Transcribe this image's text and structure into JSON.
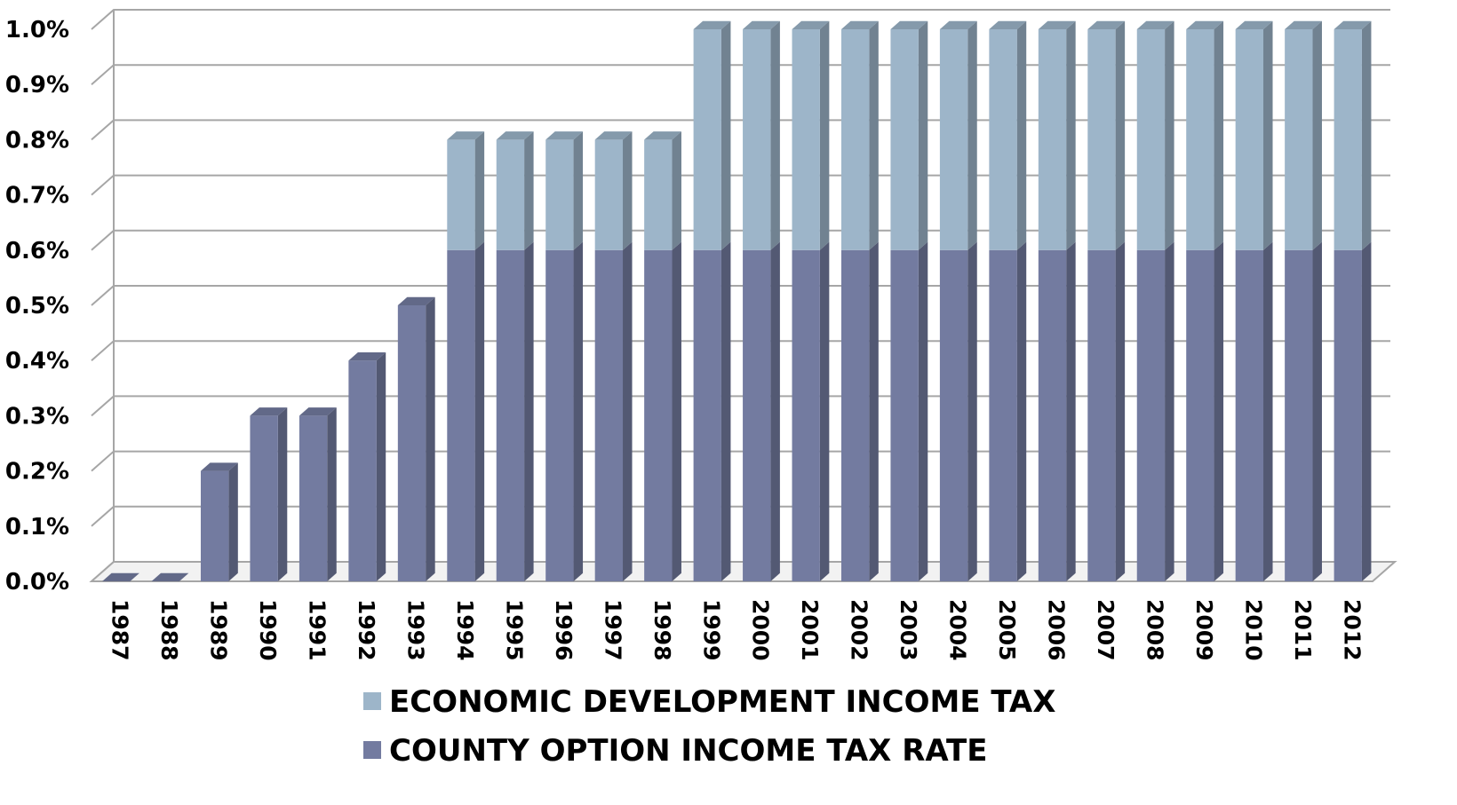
{
  "chart_data": {
    "type": "bar",
    "stacked": true,
    "three_d": true,
    "categories": [
      "1987",
      "1988",
      "1989",
      "1990",
      "1991",
      "1992",
      "1993",
      "1994",
      "1995",
      "1996",
      "1997",
      "1998",
      "1999",
      "2000",
      "2001",
      "2002",
      "2003",
      "2004",
      "2005",
      "2006",
      "2007",
      "2008",
      "2009",
      "2010",
      "2011",
      "2012"
    ],
    "series": [
      {
        "name": "COUNTY OPTION INCOME TAX RATE",
        "color": "#737ba0",
        "values": [
          0,
          0,
          0.2,
          0.3,
          0.3,
          0.4,
          0.5,
          0.6,
          0.6,
          0.6,
          0.6,
          0.6,
          0.6,
          0.6,
          0.6,
          0.6,
          0.6,
          0.6,
          0.6,
          0.6,
          0.6,
          0.6,
          0.6,
          0.6,
          0.6,
          0.6
        ]
      },
      {
        "name": "ECONOMIC DEVELOPMENT INCOME TAX",
        "color": "#9db5c9",
        "values": [
          0,
          0,
          0,
          0,
          0,
          0,
          0,
          0.2,
          0.2,
          0.2,
          0.2,
          0.2,
          0.4,
          0.4,
          0.4,
          0.4,
          0.4,
          0.4,
          0.4,
          0.4,
          0.4,
          0.4,
          0.4,
          0.4,
          0.4,
          0.4
        ]
      }
    ],
    "ylim": [
      0,
      1.0
    ],
    "y_ticks": [
      "0.0%",
      "0.1%",
      "0.2%",
      "0.3%",
      "0.4%",
      "0.5%",
      "0.6%",
      "0.7%",
      "0.8%",
      "0.9%",
      "1.0%"
    ],
    "y_unit": "%",
    "grid": true,
    "legend_position": "bottom",
    "legend_order": [
      "ECONOMIC DEVELOPMENT INCOME TAX",
      "COUNTY OPTION INCOME TAX RATE"
    ],
    "title": "",
    "xlabel": "",
    "ylabel": ""
  }
}
